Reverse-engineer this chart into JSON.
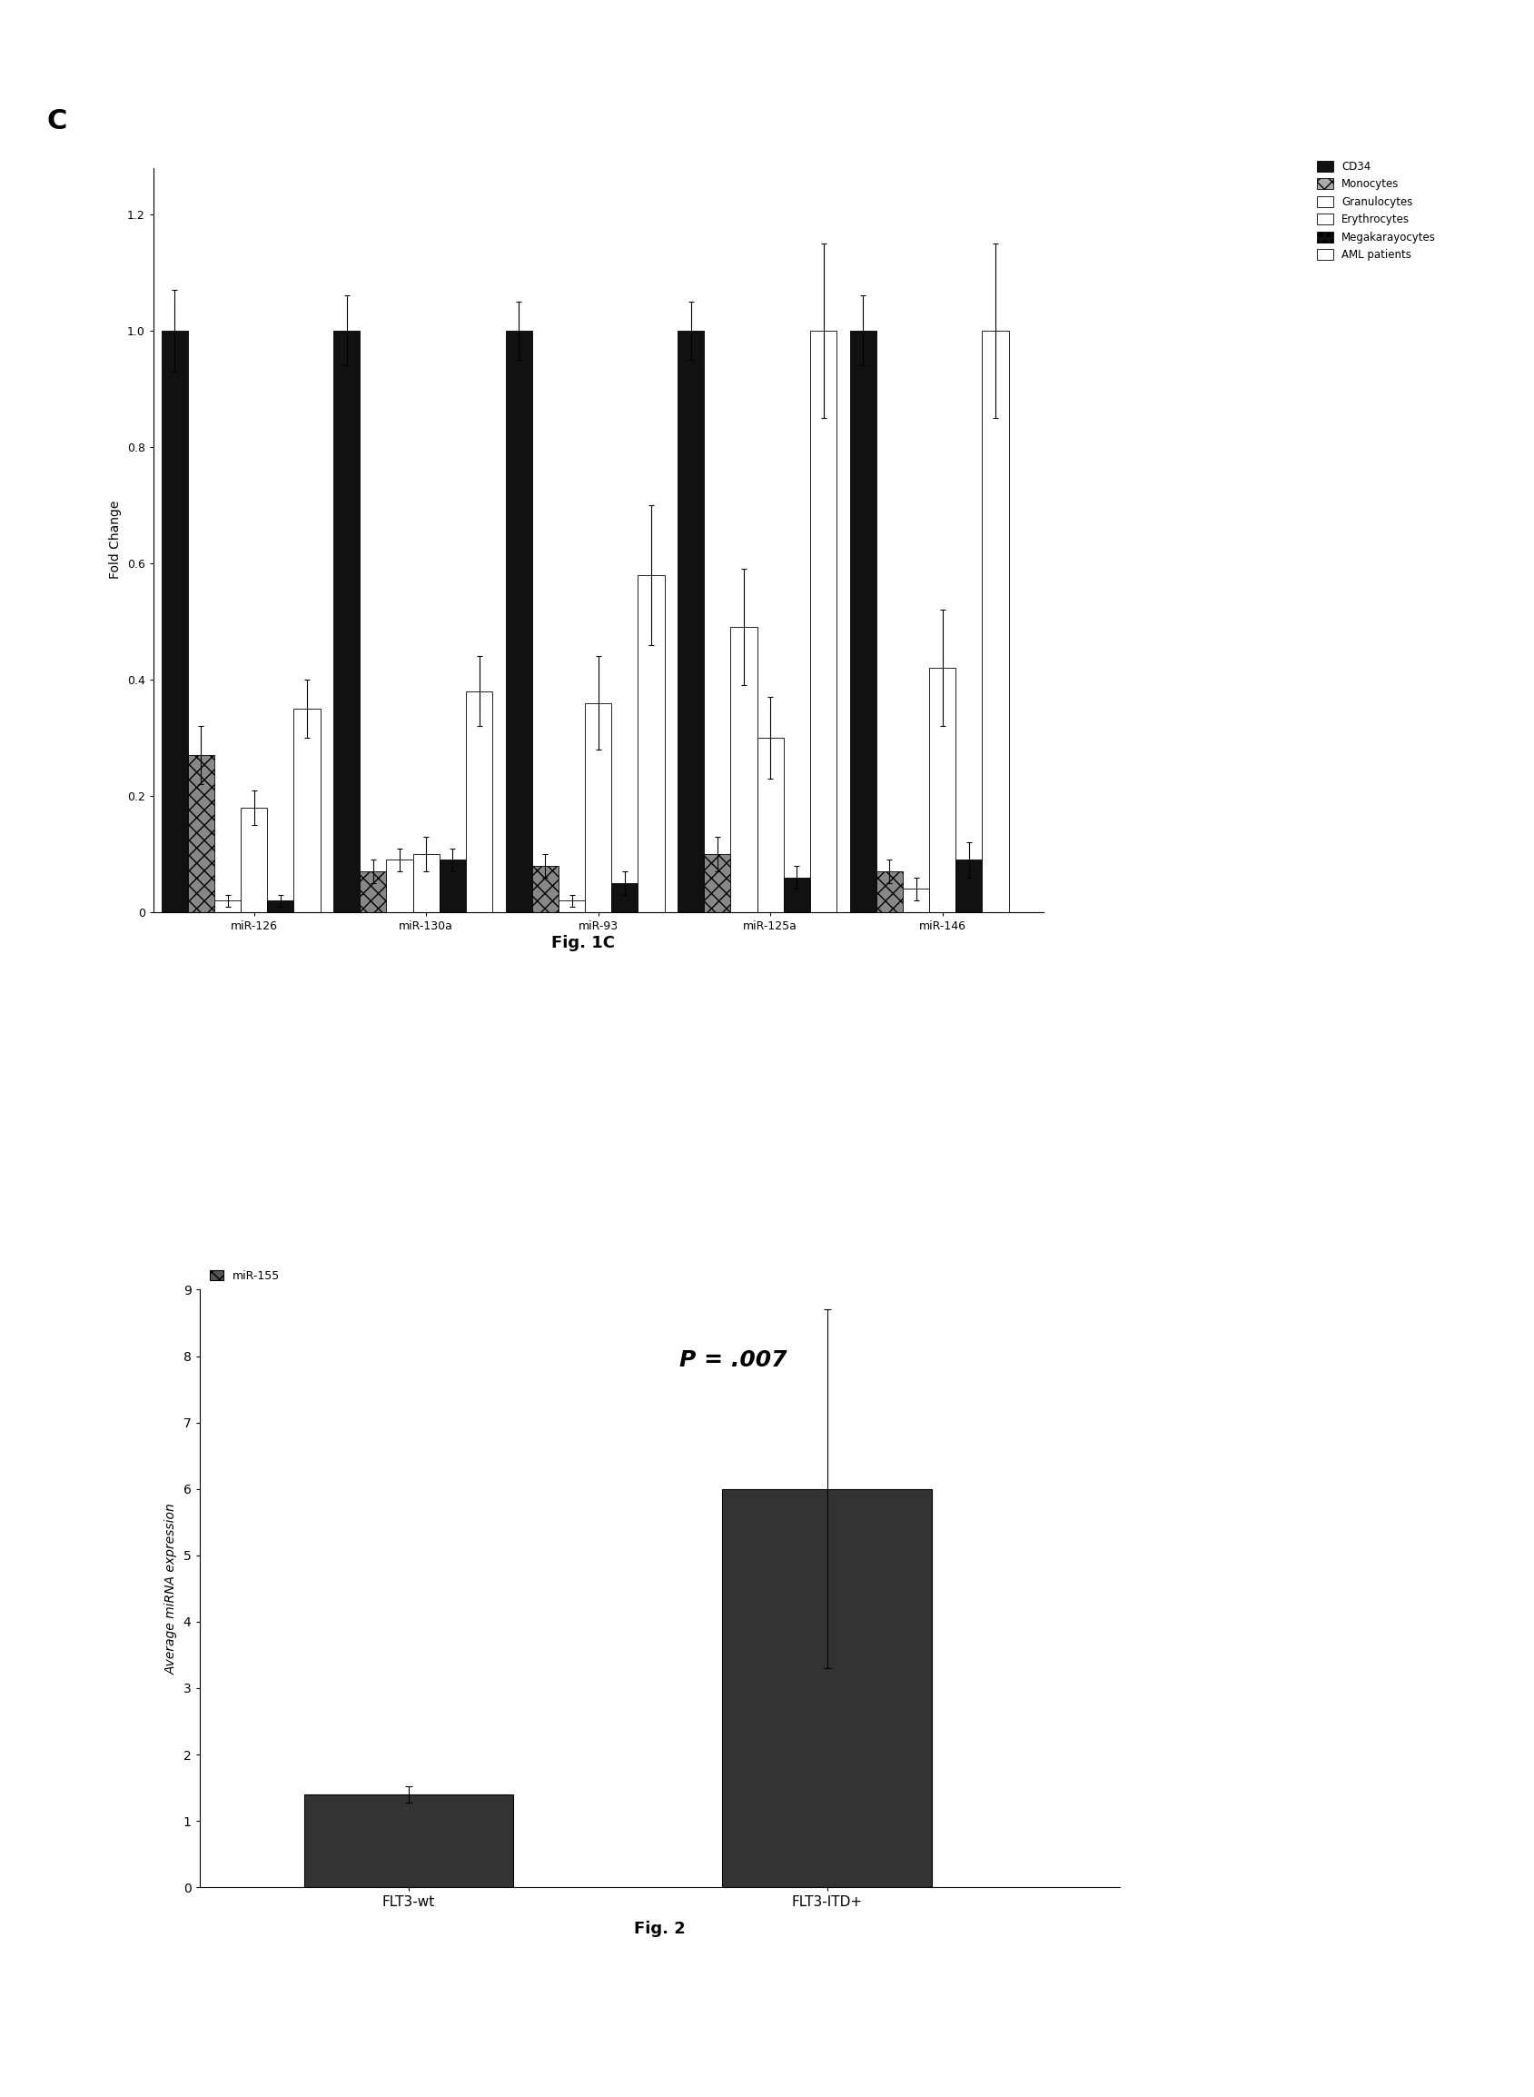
{
  "fig1c": {
    "title_label": "C",
    "ylabel": "Fold Change",
    "ylim": [
      0,
      1.28
    ],
    "yticks": [
      0,
      0.2,
      0.4,
      0.6,
      0.8,
      1.0,
      1.2
    ],
    "groups": [
      "miR-126",
      "miR-130a",
      "miR-93",
      "miR-125a",
      "miR-146"
    ],
    "series_labels": [
      "CD34",
      "Monocytes",
      "Granulocytes",
      "Erythrocytes",
      "Megakarayocytes",
      "AML patients"
    ],
    "data": {
      "CD34": [
        1.0,
        1.0,
        1.0,
        1.0,
        1.0
      ],
      "Monocytes": [
        0.27,
        0.07,
        0.08,
        0.1,
        0.07
      ],
      "Granulocytes": [
        0.02,
        0.09,
        0.02,
        0.49,
        0.04
      ],
      "Erythrocytes": [
        0.18,
        0.1,
        0.36,
        0.3,
        0.42
      ],
      "Megakarayocytes": [
        0.02,
        0.09,
        0.05,
        0.06,
        0.09
      ],
      "AML patients": [
        0.35,
        0.38,
        0.58,
        1.0,
        1.0
      ]
    },
    "errors": {
      "CD34": [
        0.07,
        0.06,
        0.05,
        0.05,
        0.06
      ],
      "Monocytes": [
        0.05,
        0.02,
        0.02,
        0.03,
        0.02
      ],
      "Granulocytes": [
        0.01,
        0.02,
        0.01,
        0.1,
        0.02
      ],
      "Erythrocytes": [
        0.03,
        0.03,
        0.08,
        0.07,
        0.1
      ],
      "Megakarayocytes": [
        0.01,
        0.02,
        0.02,
        0.02,
        0.03
      ],
      "AML patients": [
        0.05,
        0.06,
        0.12,
        0.15,
        0.15
      ]
    },
    "bar_styles": [
      {
        "facecolor": "#111111",
        "hatch": ""
      },
      {
        "facecolor": "#888888",
        "hatch": "xx"
      },
      {
        "facecolor": "white",
        "hatch": ""
      },
      {
        "facecolor": "white",
        "hatch": ""
      },
      {
        "facecolor": "#111111",
        "hatch": ""
      },
      {
        "facecolor": "white",
        "hatch": ""
      }
    ],
    "legend_styles": [
      {
        "facecolor": "#111111",
        "hatch": ""
      },
      {
        "facecolor": "#aaaaaa",
        "hatch": "xx"
      },
      {
        "facecolor": "white",
        "hatch": ""
      },
      {
        "facecolor": "white",
        "hatch": ""
      },
      {
        "facecolor": "#111111",
        "hatch": "**"
      },
      {
        "facecolor": "white",
        "hatch": ""
      }
    ],
    "fig_caption": "Fig. 1C"
  },
  "fig2": {
    "ylabel": "Average miRNA expression",
    "ylim": [
      0,
      9
    ],
    "yticks": [
      0,
      1,
      2,
      3,
      4,
      5,
      6,
      7,
      8,
      9
    ],
    "categories": [
      "FLT3-wt",
      "FLT3-ITD+"
    ],
    "values": [
      1.4,
      6.0
    ],
    "errors": [
      0.12,
      2.7
    ],
    "legend_label": "miR-155",
    "pvalue_text": "P = .007",
    "fig_caption": "Fig. 2",
    "bar_facecolor": "#333333"
  }
}
